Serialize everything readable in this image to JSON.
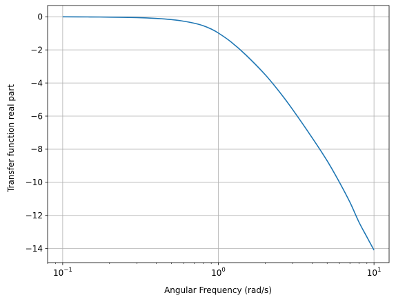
{
  "chart_data": {
    "type": "line",
    "title": "",
    "xlabel": "Angular Frequency (rad/s)",
    "ylabel": "Transfer function real part",
    "xscale": "log",
    "xlim": [
      0.08,
      12.5
    ],
    "ylim": [
      -14.85,
      0.68
    ],
    "grid": true,
    "legend": "none",
    "x_ticks": [
      {
        "value": 0.1,
        "base": "10",
        "exp": "−1"
      },
      {
        "value": 1,
        "base": "10",
        "exp": "0"
      },
      {
        "value": 10,
        "base": "10",
        "exp": "1"
      }
    ],
    "y_ticks": [
      {
        "value": 0,
        "label": "0"
      },
      {
        "value": -2,
        "label": "−2"
      },
      {
        "value": -4,
        "label": "−4"
      },
      {
        "value": -6,
        "label": "−6"
      },
      {
        "value": -8,
        "label": "−8"
      },
      {
        "value": -10,
        "label": "−10"
      },
      {
        "value": -12,
        "label": "−12"
      },
      {
        "value": -14,
        "label": "−14"
      }
    ],
    "series": [
      {
        "color": "#1f77b4",
        "points": [
          [
            0.1,
            0.0
          ],
          [
            0.15,
            -0.01
          ],
          [
            0.2,
            -0.02
          ],
          [
            0.3,
            -0.05
          ],
          [
            0.4,
            -0.1
          ],
          [
            0.5,
            -0.17
          ],
          [
            0.6,
            -0.27
          ],
          [
            0.7,
            -0.39
          ],
          [
            0.8,
            -0.54
          ],
          [
            0.9,
            -0.74
          ],
          [
            1.0,
            -0.98
          ],
          [
            1.2,
            -1.5
          ],
          [
            1.5,
            -2.3
          ],
          [
            2.0,
            -3.5
          ],
          [
            2.5,
            -4.6
          ],
          [
            3.0,
            -5.6
          ],
          [
            4.0,
            -7.3
          ],
          [
            5.0,
            -8.7
          ],
          [
            6.0,
            -10.0
          ],
          [
            7.0,
            -11.2
          ],
          [
            8.0,
            -12.4
          ],
          [
            9.0,
            -13.3
          ],
          [
            10.0,
            -14.1
          ]
        ]
      }
    ]
  }
}
